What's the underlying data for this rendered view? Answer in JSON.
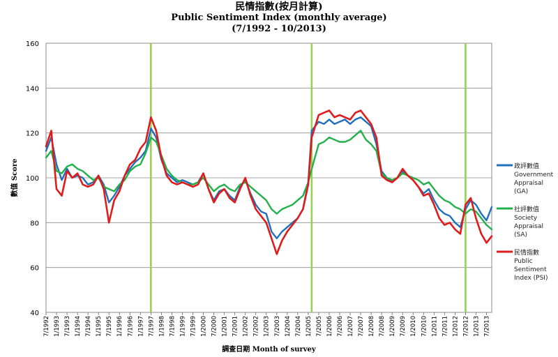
{
  "titles": {
    "main": "民情指數(按月計算)",
    "sub": "Public Sentiment Index (monthly  average)",
    "range": "(7/1992 - 10/2013)"
  },
  "chart_data": {
    "type": "line",
    "title": "民情指數(按月計算) Public Sentiment Index (monthly average) (7/1992 - 10/2013)",
    "xlabel": "調查日期  Month  of survey",
    "ylabel": "數值 Score",
    "ylim": [
      40,
      160
    ],
    "yticks": [
      40,
      60,
      80,
      100,
      120,
      140,
      160
    ],
    "xtick_labels": [
      "7/1992",
      "1/1993",
      "7/1993",
      "1/1994",
      "7/1994",
      "1/1995",
      "7/1995",
      "1/1996",
      "7/1996",
      "1/1997",
      "7/1997",
      "1/1998",
      "7/1998",
      "1/1999",
      "7/1999",
      "1/2000",
      "7/2000",
      "1/2001",
      "7/2001",
      "1/2002",
      "7/2002",
      "1/2003",
      "7/2003",
      "1/2004",
      "7/2004",
      "1/2005",
      "7/2005",
      "1/2006",
      "7/2006",
      "1/2007",
      "7/2007",
      "1/2008",
      "7/2008",
      "1/2009",
      "7/2009",
      "1/2010",
      "7/2010",
      "1/2011",
      "7/2011",
      "1/2012",
      "7/2012",
      "1/2013",
      "7/2013"
    ],
    "grid": true,
    "legend_position": "right",
    "vertical_markers": [
      "7/1997",
      "3/2005",
      "7/2012"
    ],
    "marker_color": "#92d050",
    "series": [
      {
        "name": "政評數值 Government Appraisal (GA)",
        "color": "#1f6fba",
        "points": [
          [
            "7/1992",
            112
          ],
          [
            "10/1992",
            118
          ],
          [
            "1/1993",
            106
          ],
          [
            "4/1993",
            99
          ],
          [
            "7/1993",
            104
          ],
          [
            "10/1993",
            100
          ],
          [
            "1/1994",
            101
          ],
          [
            "4/1994",
            100
          ],
          [
            "7/1994",
            97
          ],
          [
            "10/1994",
            98
          ],
          [
            "1/1995",
            101
          ],
          [
            "4/1995",
            97
          ],
          [
            "7/1995",
            89
          ],
          [
            "10/1995",
            92
          ],
          [
            "1/1996",
            96
          ],
          [
            "4/1996",
            101
          ],
          [
            "7/1996",
            104
          ],
          [
            "10/1996",
            107
          ],
          [
            "1/1997",
            109
          ],
          [
            "4/1997",
            112
          ],
          [
            "7/1997",
            122
          ],
          [
            "10/1997",
            118
          ],
          [
            "1/1998",
            108
          ],
          [
            "4/1998",
            102
          ],
          [
            "7/1998",
            100
          ],
          [
            "10/1998",
            98
          ],
          [
            "1/1999",
            99
          ],
          [
            "4/1999",
            98
          ],
          [
            "7/1999",
            97
          ],
          [
            "10/1999",
            98
          ],
          [
            "1/2000",
            102
          ],
          [
            "4/2000",
            95
          ],
          [
            "7/2000",
            90
          ],
          [
            "10/2000",
            94
          ],
          [
            "1/2001",
            95
          ],
          [
            "4/2001",
            92
          ],
          [
            "7/2001",
            90
          ],
          [
            "10/2001",
            96
          ],
          [
            "1/2002",
            99
          ],
          [
            "4/2002",
            93
          ],
          [
            "7/2002",
            88
          ],
          [
            "10/2002",
            85
          ],
          [
            "1/2003",
            84
          ],
          [
            "4/2003",
            76
          ],
          [
            "7/2003",
            73
          ],
          [
            "10/2003",
            76
          ],
          [
            "1/2004",
            78
          ],
          [
            "4/2004",
            80
          ],
          [
            "7/2004",
            82
          ],
          [
            "10/2004",
            86
          ],
          [
            "1/2005",
            98
          ],
          [
            "3/2005",
            121
          ],
          [
            "7/2005",
            125
          ],
          [
            "10/2005",
            124
          ],
          [
            "1/2006",
            126
          ],
          [
            "4/2006",
            124
          ],
          [
            "7/2006",
            125
          ],
          [
            "10/2006",
            126
          ],
          [
            "1/2007",
            124
          ],
          [
            "4/2007",
            126
          ],
          [
            "7/2007",
            127
          ],
          [
            "10/2007",
            125
          ],
          [
            "1/2008",
            123
          ],
          [
            "4/2008",
            115
          ],
          [
            "7/2008",
            103
          ],
          [
            "10/2008",
            100
          ],
          [
            "1/2009",
            98
          ],
          [
            "4/2009",
            100
          ],
          [
            "7/2009",
            103
          ],
          [
            "10/2009",
            101
          ],
          [
            "1/2010",
            99
          ],
          [
            "4/2010",
            96
          ],
          [
            "7/2010",
            93
          ],
          [
            "10/2010",
            95
          ],
          [
            "1/2011",
            90
          ],
          [
            "4/2011",
            86
          ],
          [
            "7/2011",
            84
          ],
          [
            "10/2011",
            83
          ],
          [
            "1/2012",
            80
          ],
          [
            "4/2012",
            78
          ],
          [
            "7/2012",
            86
          ],
          [
            "10/2012",
            90
          ],
          [
            "1/2013",
            88
          ],
          [
            "4/2013",
            84
          ],
          [
            "7/2013",
            81
          ],
          [
            "10/2013",
            87
          ]
        ]
      },
      {
        "name": "社評數值 Society Appraisal (SA)",
        "color": "#22b04a",
        "points": [
          [
            "7/1992",
            109
          ],
          [
            "10/1992",
            112
          ],
          [
            "1/1993",
            103
          ],
          [
            "4/1993",
            102
          ],
          [
            "7/1993",
            105
          ],
          [
            "10/1993",
            106
          ],
          [
            "1/1994",
            104
          ],
          [
            "4/1994",
            103
          ],
          [
            "7/1994",
            101
          ],
          [
            "10/1994",
            99
          ],
          [
            "1/1995",
            100
          ],
          [
            "4/1995",
            96
          ],
          [
            "7/1995",
            95
          ],
          [
            "10/1995",
            94
          ],
          [
            "1/1996",
            97
          ],
          [
            "4/1996",
            99
          ],
          [
            "7/1996",
            103
          ],
          [
            "10/1996",
            105
          ],
          [
            "1/1997",
            106
          ],
          [
            "4/1997",
            111
          ],
          [
            "7/1997",
            118
          ],
          [
            "10/1997",
            116
          ],
          [
            "1/1998",
            110
          ],
          [
            "4/1998",
            104
          ],
          [
            "7/1998",
            101
          ],
          [
            "10/1998",
            99
          ],
          [
            "1/1999",
            98
          ],
          [
            "4/1999",
            97
          ],
          [
            "7/1999",
            97
          ],
          [
            "10/1999",
            98
          ],
          [
            "1/2000",
            100
          ],
          [
            "4/2000",
            97
          ],
          [
            "7/2000",
            94
          ],
          [
            "10/2000",
            96
          ],
          [
            "1/2001",
            97
          ],
          [
            "4/2001",
            95
          ],
          [
            "7/2001",
            94
          ],
          [
            "10/2001",
            97
          ],
          [
            "1/2002",
            98
          ],
          [
            "4/2002",
            96
          ],
          [
            "7/2002",
            94
          ],
          [
            "10/2002",
            92
          ],
          [
            "1/2003",
            90
          ],
          [
            "4/2003",
            86
          ],
          [
            "7/2003",
            84
          ],
          [
            "10/2003",
            86
          ],
          [
            "1/2004",
            87
          ],
          [
            "4/2004",
            88
          ],
          [
            "7/2004",
            90
          ],
          [
            "10/2004",
            92
          ],
          [
            "1/2005",
            98
          ],
          [
            "3/2005",
            104
          ],
          [
            "7/2005",
            115
          ],
          [
            "10/2005",
            116
          ],
          [
            "1/2006",
            118
          ],
          [
            "4/2006",
            117
          ],
          [
            "7/2006",
            116
          ],
          [
            "10/2006",
            116
          ],
          [
            "1/2007",
            117
          ],
          [
            "4/2007",
            119
          ],
          [
            "7/2007",
            121
          ],
          [
            "10/2007",
            117
          ],
          [
            "1/2008",
            115
          ],
          [
            "4/2008",
            112
          ],
          [
            "7/2008",
            102
          ],
          [
            "10/2008",
            100
          ],
          [
            "1/2009",
            99
          ],
          [
            "4/2009",
            100
          ],
          [
            "7/2009",
            102
          ],
          [
            "10/2009",
            101
          ],
          [
            "1/2010",
            100
          ],
          [
            "4/2010",
            99
          ],
          [
            "7/2010",
            97
          ],
          [
            "10/2010",
            98
          ],
          [
            "1/2011",
            95
          ],
          [
            "4/2011",
            92
          ],
          [
            "7/2011",
            90
          ],
          [
            "10/2011",
            89
          ],
          [
            "1/2012",
            87
          ],
          [
            "4/2012",
            86
          ],
          [
            "7/2012",
            84
          ],
          [
            "10/2012",
            86
          ],
          [
            "1/2013",
            85
          ],
          [
            "4/2013",
            82
          ],
          [
            "7/2013",
            79
          ],
          [
            "10/2013",
            77
          ]
        ]
      },
      {
        "name": "民情指數 Public Sentiment Index (PSI)",
        "color": "#e01b1b",
        "points": [
          [
            "7/1992",
            114
          ],
          [
            "10/1992",
            121
          ],
          [
            "1/1993",
            95
          ],
          [
            "4/1993",
            92
          ],
          [
            "7/1993",
            103
          ],
          [
            "10/1993",
            100
          ],
          [
            "1/1994",
            102
          ],
          [
            "4/1994",
            97
          ],
          [
            "7/1994",
            96
          ],
          [
            "10/1994",
            97
          ],
          [
            "1/1995",
            101
          ],
          [
            "4/1995",
            95
          ],
          [
            "7/1995",
            80
          ],
          [
            "10/1995",
            90
          ],
          [
            "1/1996",
            94
          ],
          [
            "4/1996",
            101
          ],
          [
            "7/1996",
            106
          ],
          [
            "10/1996",
            108
          ],
          [
            "1/1997",
            113
          ],
          [
            "4/1997",
            116
          ],
          [
            "7/1997",
            127
          ],
          [
            "10/1997",
            121
          ],
          [
            "1/1998",
            109
          ],
          [
            "4/1998",
            101
          ],
          [
            "7/1998",
            98
          ],
          [
            "10/1998",
            97
          ],
          [
            "1/1999",
            98
          ],
          [
            "4/1999",
            97
          ],
          [
            "7/1999",
            96
          ],
          [
            "10/1999",
            97
          ],
          [
            "1/2000",
            102
          ],
          [
            "4/2000",
            95
          ],
          [
            "7/2000",
            89
          ],
          [
            "10/2000",
            93
          ],
          [
            "1/2001",
            95
          ],
          [
            "4/2001",
            91
          ],
          [
            "7/2001",
            89
          ],
          [
            "10/2001",
            95
          ],
          [
            "1/2002",
            100
          ],
          [
            "4/2002",
            92
          ],
          [
            "7/2002",
            86
          ],
          [
            "10/2002",
            83
          ],
          [
            "1/2003",
            80
          ],
          [
            "4/2003",
            73
          ],
          [
            "7/2003",
            66
          ],
          [
            "10/2003",
            72
          ],
          [
            "1/2004",
            76
          ],
          [
            "4/2004",
            79
          ],
          [
            "7/2004",
            82
          ],
          [
            "10/2004",
            86
          ],
          [
            "1/2005",
            97
          ],
          [
            "3/2005",
            118
          ],
          [
            "7/2005",
            128
          ],
          [
            "10/2005",
            129
          ],
          [
            "1/2006",
            130
          ],
          [
            "4/2006",
            127
          ],
          [
            "7/2006",
            128
          ],
          [
            "10/2006",
            127
          ],
          [
            "1/2007",
            126
          ],
          [
            "4/2007",
            129
          ],
          [
            "7/2007",
            130
          ],
          [
            "10/2007",
            127
          ],
          [
            "1/2008",
            124
          ],
          [
            "4/2008",
            118
          ],
          [
            "7/2008",
            101
          ],
          [
            "10/2008",
            99
          ],
          [
            "1/2009",
            98
          ],
          [
            "4/2009",
            100
          ],
          [
            "7/2009",
            104
          ],
          [
            "10/2009",
            101
          ],
          [
            "1/2010",
            99
          ],
          [
            "4/2010",
            96
          ],
          [
            "7/2010",
            92
          ],
          [
            "10/2010",
            93
          ],
          [
            "1/2011",
            88
          ],
          [
            "4/2011",
            82
          ],
          [
            "7/2011",
            79
          ],
          [
            "10/2011",
            80
          ],
          [
            "1/2012",
            77
          ],
          [
            "4/2012",
            75
          ],
          [
            "7/2012",
            88
          ],
          [
            "10/2012",
            91
          ],
          [
            "1/2013",
            82
          ],
          [
            "4/2013",
            75
          ],
          [
            "7/2013",
            71
          ],
          [
            "10/2013",
            74
          ]
        ]
      }
    ]
  },
  "legend": [
    {
      "zh": "政評數值",
      "en_lines": [
        "Government",
        "Appraisal",
        "(GA)"
      ],
      "color": "#1f6fba"
    },
    {
      "zh": "社評數值",
      "en_lines": [
        "Society",
        "Appraisal",
        "(SA)"
      ],
      "color": "#22b04a"
    },
    {
      "zh": "民情指數",
      "en_lines": [
        "Public",
        "Sentiment",
        "Index (PSI)"
      ],
      "color": "#e01b1b"
    }
  ]
}
